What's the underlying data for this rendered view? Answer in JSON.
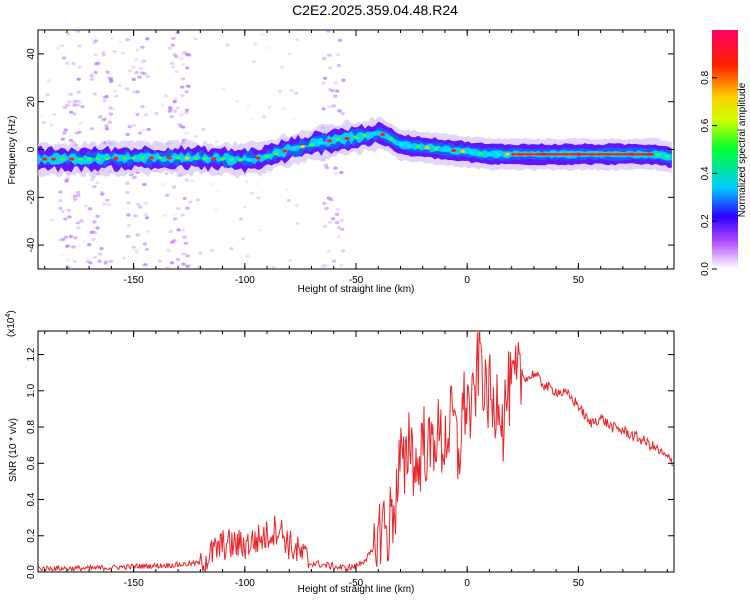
{
  "title": "C2E2.2025.359.04.48.R24",
  "colors": {
    "signal": "#e8262a",
    "axis": "#000000",
    "halo": "#c9b3f0"
  },
  "chart_data": [
    {
      "type": "heatmap",
      "xlabel": "Height of straight line (km)",
      "ylabel": "Frequency (Hz)",
      "xlim": [
        -193,
        93
      ],
      "ylim": [
        -50,
        50
      ],
      "xticks": [
        -150,
        -100,
        -50,
        0,
        50
      ],
      "xtick_labels": [
        "-150",
        "-100",
        "-50",
        "0",
        "50"
      ],
      "yticks": [
        -40,
        -20,
        0,
        20,
        40
      ],
      "ytick_labels": [
        "-40",
        "-20",
        "0",
        "20",
        "40"
      ],
      "ridge_x": [
        -193,
        -170,
        -150,
        -130,
        -110,
        -100,
        -90,
        -80,
        -70,
        -60,
        -50,
        -40,
        -35,
        -30,
        -20,
        -10,
        0,
        10,
        20,
        30,
        50,
        70,
        85,
        93
      ],
      "ridge_y": [
        -4,
        -4,
        -3.5,
        -3.5,
        -4,
        -4.5,
        -3,
        0,
        2,
        4,
        5,
        7,
        5,
        2,
        1,
        0,
        -1,
        -2,
        -2,
        -2,
        -2,
        -2,
        -2,
        -3.5
      ],
      "noise_bands_x": [
        -178,
        -165,
        -148,
        -130,
        -60
      ],
      "colorbar": {
        "label": "Normalized spectral amplitude",
        "range": [
          0,
          1
        ],
        "ticks": [
          0.0,
          0.2,
          0.4,
          0.6,
          0.8
        ],
        "tick_labels": [
          "0.0",
          "0.2",
          "0.4",
          "0.6",
          "0.8"
        ]
      }
    },
    {
      "type": "line",
      "xlabel": "Height of straight line (km)",
      "ylabel": "SNR (10 * v/v)",
      "scale_label": "(x10",
      "scale_exp": "4",
      "scale_close": ")",
      "xlim": [
        -193,
        93
      ],
      "ylim": [
        0,
        1.33
      ],
      "xticks": [
        -150,
        -100,
        -50,
        0,
        50
      ],
      "xtick_labels": [
        "-150",
        "-100",
        "-50",
        "0",
        "50"
      ],
      "yticks": [
        0.0,
        0.2,
        0.4,
        0.6,
        0.8,
        1.0,
        1.2
      ],
      "ytick_labels": [
        "0.0",
        "0.2",
        "0.4",
        "0.6",
        "0.8",
        "1.0",
        "1.2"
      ],
      "series": [
        {
          "name": "SNR",
          "x": [
            -193,
            -170,
            -150,
            -130,
            -120,
            -115,
            -110,
            -100,
            -90,
            -85,
            -80,
            -75,
            -70,
            -60,
            -55,
            -50,
            -45,
            -42,
            -40,
            -38,
            -36,
            -34,
            -32,
            -30,
            -28,
            -26,
            -24,
            -22,
            -20,
            -17,
            -14,
            -11,
            -8,
            -6,
            -4,
            -2,
            0,
            2,
            4,
            6,
            8,
            10,
            12,
            14,
            16,
            18,
            20,
            22,
            25,
            28,
            30,
            33,
            36,
            40,
            45,
            50,
            55,
            60,
            65,
            70,
            75,
            80,
            85,
            90,
            93
          ],
          "y": [
            0.02,
            0.02,
            0.03,
            0.04,
            0.05,
            0.1,
            0.15,
            0.15,
            0.2,
            0.25,
            0.15,
            0.1,
            0.05,
            0.03,
            0.02,
            0.03,
            0.08,
            0.12,
            0.18,
            0.3,
            0.2,
            0.32,
            0.4,
            0.65,
            0.5,
            0.8,
            0.6,
            0.55,
            0.75,
            0.65,
            0.78,
            0.7,
            0.8,
            0.85,
            0.6,
            0.9,
            0.95,
            0.85,
            1.05,
            1.25,
            0.95,
            1.0,
            0.85,
            1.05,
            0.8,
            1.0,
            1.0,
            1.05,
            1.08,
            1.07,
            1.1,
            1.05,
            1.02,
            1.0,
            0.98,
            0.92,
            0.82,
            0.85,
            0.8,
            0.78,
            0.75,
            0.72,
            0.68,
            0.63,
            0.6
          ]
        }
      ]
    }
  ]
}
